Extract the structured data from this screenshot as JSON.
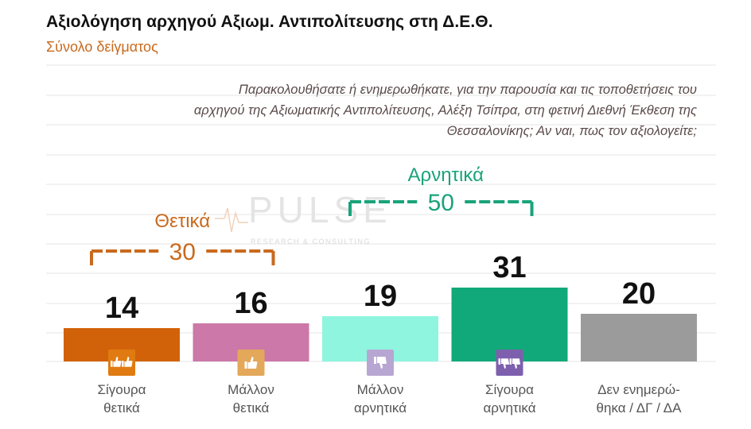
{
  "title": "Αξιολόγηση αρχηγού Αξιωμ. Αντιπολίτευσης στη Δ.Ε.Θ.",
  "subtitle": "Σύνολο δείγματος",
  "question": "Παρακολουθήσατε ή ενημερωθήκατε, για την παρουσία και τις τοποθετήσεις του αρχηγού της Αξιωματικής Αντιπολίτευσης, Αλέξη Τσίπρα, στη φετινή Διεθνή Έκθεση της Θεσσαλονίκης; Αν ναι, πως τον αξιολογείτε;",
  "watermark": {
    "brand": "PULSE",
    "tagline": "RESEARCH & CONSULTING"
  },
  "chart_data": {
    "type": "bar",
    "categories": [
      [
        "Σίγουρα",
        "θετικά"
      ],
      [
        "Μάλλον",
        "θετικά"
      ],
      [
        "Μάλλον",
        "αρνητικά"
      ],
      [
        "Σίγουρα",
        "αρνητικά"
      ],
      [
        "Δεν ενημερώ-",
        "θηκα / ΔΓ / ΔΑ"
      ]
    ],
    "values": [
      14,
      16,
      19,
      31,
      20
    ],
    "colors": [
      "#d2620a",
      "#cc78a8",
      "#8ff5df",
      "#11a97a",
      "#9b9b9b"
    ],
    "icons": [
      "double-thumbs-up-icon",
      "thumbs-up-icon",
      "thumbs-down-icon",
      "double-thumbs-down-icon",
      ""
    ],
    "icon_colors": [
      "#e07b12",
      "#e3a85a",
      "#b7a6d2",
      "#7d5fae",
      ""
    ],
    "groups": [
      {
        "label": "Θετικά",
        "value": "30",
        "color": "#c96a1e",
        "from": 0,
        "to": 1
      },
      {
        "label": "Αρνητικά",
        "value": "50",
        "color": "#1aa37b",
        "from": 2,
        "to": 3
      }
    ],
    "ylim": [
      0,
      35
    ],
    "grid": true
  }
}
